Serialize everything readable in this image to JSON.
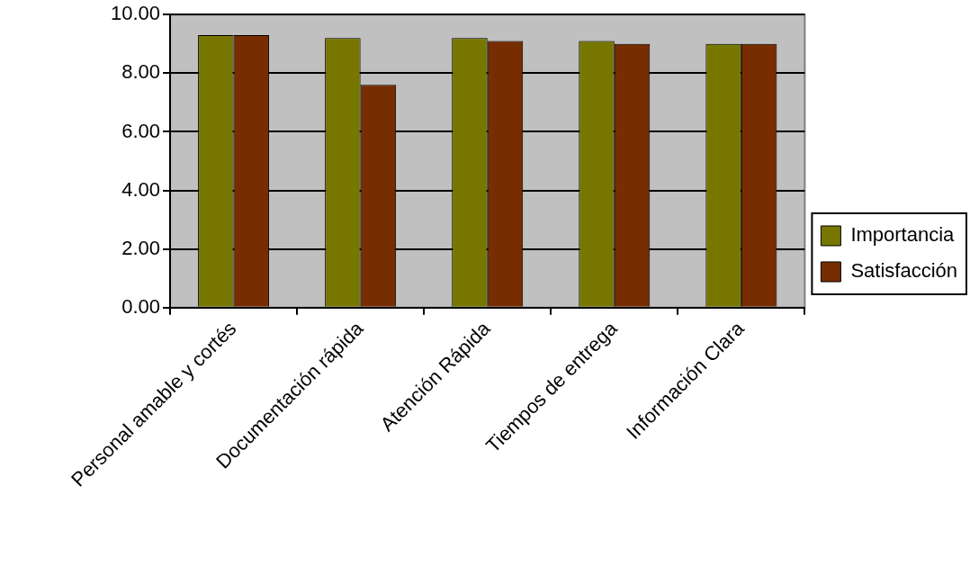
{
  "chart_data": {
    "type": "bar",
    "categories": [
      "Personal amable y cortés",
      "Documentación rápida",
      "Atención Rápida",
      "Tiempos de entrega",
      "Información Clara"
    ],
    "series": [
      {
        "name": "Importancia",
        "color": "#777700",
        "values": [
          9.3,
          9.2,
          9.2,
          9.1,
          9.0
        ]
      },
      {
        "name": "Satisfacción",
        "color": "#772d00",
        "values": [
          9.3,
          7.6,
          9.1,
          9.0,
          9.0
        ]
      }
    ],
    "ylim": [
      0,
      10
    ],
    "yticks": [
      {
        "value": 0,
        "label": "0.00"
      },
      {
        "value": 2,
        "label": "2.00"
      },
      {
        "value": 4,
        "label": "4.00"
      },
      {
        "value": 6,
        "label": "6.00"
      },
      {
        "value": 8,
        "label": "8.00"
      },
      {
        "value": 10,
        "label": "10.00"
      }
    ],
    "grid": "y",
    "legend": "right"
  }
}
